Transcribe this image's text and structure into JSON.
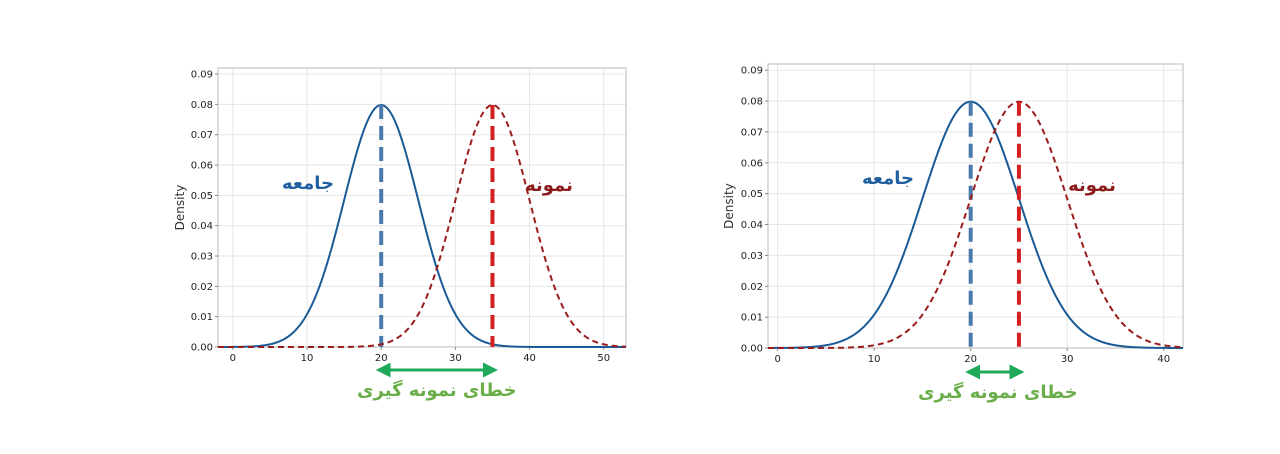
{
  "colors": {
    "population_curve": "#1a5a96",
    "population_mean_line": "#4a7aab",
    "sample_curve": "#9b1c1c",
    "sample_mean_line": "#d21f1f",
    "error_arrow": "#1faa59",
    "error_label": "#6aae4a",
    "population_label": "#1f5fa0",
    "sample_label": "#8b1a1a"
  },
  "chart_data": [
    {
      "type": "line",
      "ylabel": "Density",
      "xlabel": "",
      "xlim": [
        -2,
        53
      ],
      "ylim": [
        0,
        0.092
      ],
      "x_ticks": [
        0,
        10,
        20,
        30,
        40,
        50
      ],
      "y_ticks": [
        0.0,
        0.01,
        0.02,
        0.03,
        0.04,
        0.05,
        0.06,
        0.07,
        0.08,
        0.09
      ],
      "y_tick_labels": [
        "0.00",
        "0.01",
        "0.02",
        "0.03",
        "0.04",
        "0.05",
        "0.06",
        "0.07",
        "0.08",
        "0.09"
      ],
      "grid": true,
      "series": [
        {
          "label": "جامعه",
          "mean": 20,
          "sd": 5,
          "style": "solid"
        },
        {
          "label": "نمونه",
          "mean": 35,
          "sd": 5,
          "style": "dashed"
        }
      ],
      "annotations": {
        "error_label": "خطای نمونه گیری",
        "error_span": [
          20,
          35
        ]
      }
    },
    {
      "type": "line",
      "ylabel": "Density",
      "xlabel": "",
      "xlim": [
        -1,
        42
      ],
      "ylim": [
        0,
        0.092
      ],
      "x_ticks": [
        0,
        10,
        20,
        30,
        40
      ],
      "y_ticks": [
        0.0,
        0.01,
        0.02,
        0.03,
        0.04,
        0.05,
        0.06,
        0.07,
        0.08,
        0.09
      ],
      "y_tick_labels": [
        "0.00",
        "0.01",
        "0.02",
        "0.03",
        "0.04",
        "0.05",
        "0.06",
        "0.07",
        "0.08",
        "0.09"
      ],
      "grid": true,
      "series": [
        {
          "label": "جامعه",
          "mean": 20,
          "sd": 5,
          "style": "solid"
        },
        {
          "label": "نمونه",
          "mean": 25,
          "sd": 5,
          "style": "dashed"
        }
      ],
      "annotations": {
        "error_label": "خطای نمونه گیری",
        "error_span": [
          20,
          25
        ]
      }
    }
  ]
}
